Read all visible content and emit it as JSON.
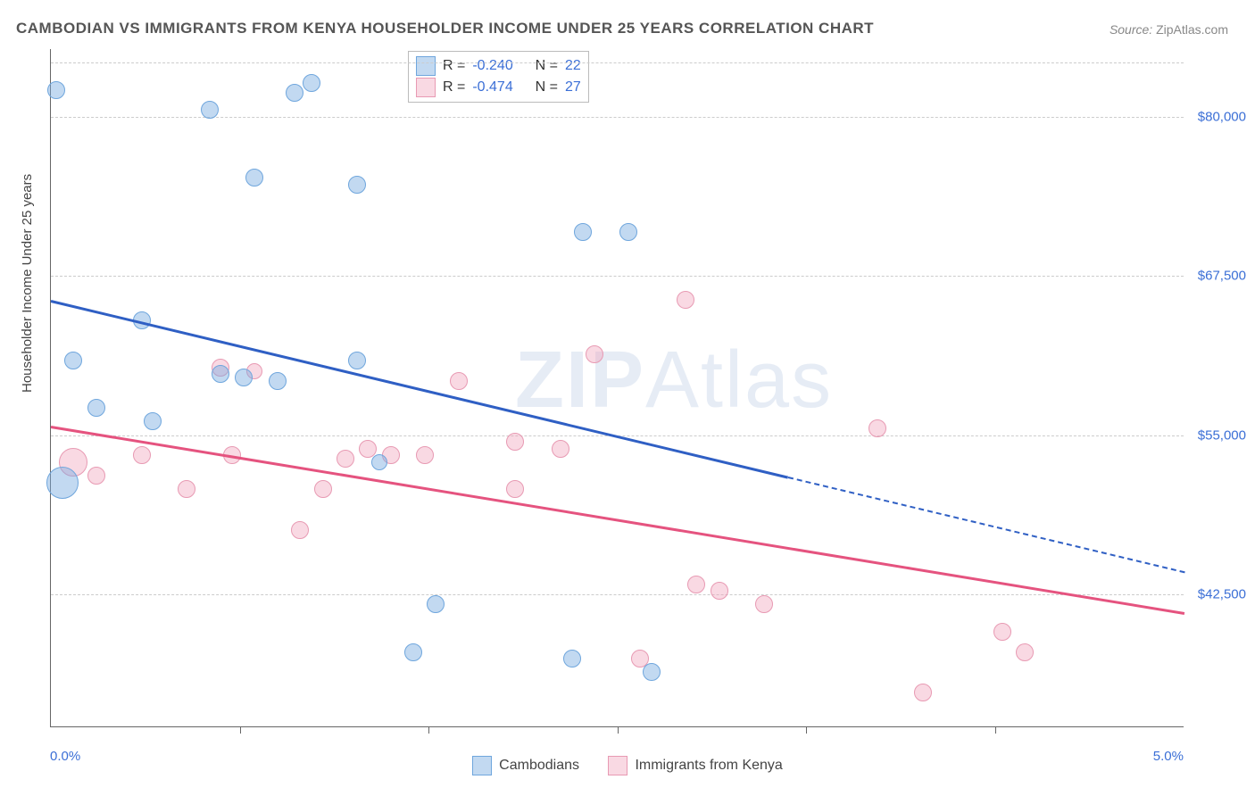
{
  "title": "CAMBODIAN VS IMMIGRANTS FROM KENYA HOUSEHOLDER INCOME UNDER 25 YEARS CORRELATION CHART",
  "source": {
    "label": "Source:",
    "text": "ZipAtlas.com"
  },
  "watermark": {
    "bold": "ZIP",
    "rest": "Atlas"
  },
  "yaxis_title": "Householder Income Under 25 years",
  "xaxis": {
    "min": 0.0,
    "max": 5.0,
    "left_label": "0.0%",
    "right_label": "5.0%",
    "tick_step_pct": 16.67
  },
  "yaxis": {
    "ticks": [
      {
        "value": 42500,
        "label": "$42,500",
        "pos_pct": 80.5
      },
      {
        "value": 55000,
        "label": "$55,000",
        "pos_pct": 57.0
      },
      {
        "value": 67500,
        "label": "$67,500",
        "pos_pct": 33.5
      },
      {
        "value": 80000,
        "label": "$80,000",
        "pos_pct": 10.0
      }
    ],
    "extra_gridline_pct": 2.0
  },
  "series": {
    "blue": {
      "label": "Cambodians",
      "fill": "rgba(120,170,225,0.45)",
      "stroke": "#6fa6dd",
      "r_value": "-0.240",
      "n_value": "22",
      "trend": {
        "x1_pct": 0,
        "y1_pct": 37,
        "x2_pct": 65,
        "y2_pct": 63,
        "color": "#2f5fc4"
      },
      "trend_ext": {
        "x1_pct": 65,
        "y1_pct": 63,
        "x2_pct": 100,
        "y2_pct": 77
      },
      "points": [
        {
          "x": 0.5,
          "y": 6,
          "r": 10
        },
        {
          "x": 14,
          "y": 9,
          "r": 10
        },
        {
          "x": 21.5,
          "y": 6.5,
          "r": 10
        },
        {
          "x": 23,
          "y": 5,
          "r": 10
        },
        {
          "x": 18,
          "y": 19,
          "r": 10
        },
        {
          "x": 27,
          "y": 20,
          "r": 10
        },
        {
          "x": 47,
          "y": 27,
          "r": 10
        },
        {
          "x": 51,
          "y": 27,
          "r": 10
        },
        {
          "x": 8,
          "y": 40,
          "r": 10
        },
        {
          "x": 2,
          "y": 46,
          "r": 10
        },
        {
          "x": 15,
          "y": 48,
          "r": 10
        },
        {
          "x": 17,
          "y": 48.5,
          "r": 10
        },
        {
          "x": 20,
          "y": 49,
          "r": 10
        },
        {
          "x": 27,
          "y": 46,
          "r": 10
        },
        {
          "x": 29,
          "y": 61,
          "r": 9
        },
        {
          "x": 9,
          "y": 55,
          "r": 10
        },
        {
          "x": 4,
          "y": 53,
          "r": 10
        },
        {
          "x": 1,
          "y": 64,
          "r": 18
        },
        {
          "x": 34,
          "y": 82,
          "r": 10
        },
        {
          "x": 32,
          "y": 89,
          "r": 10
        },
        {
          "x": 46,
          "y": 90,
          "r": 10
        },
        {
          "x": 53,
          "y": 92,
          "r": 10
        }
      ]
    },
    "pink": {
      "label": "Immigrants from Kenya",
      "fill": "rgba(240,160,185,0.40)",
      "stroke": "#e89ab3",
      "r_value": "-0.474",
      "n_value": "27",
      "trend": {
        "x1_pct": 0,
        "y1_pct": 55.5,
        "x2_pct": 100,
        "y2_pct": 83,
        "color": "#e5537f"
      },
      "points": [
        {
          "x": 15,
          "y": 47,
          "r": 10
        },
        {
          "x": 18,
          "y": 47.5,
          "r": 9
        },
        {
          "x": 8,
          "y": 60,
          "r": 10
        },
        {
          "x": 12,
          "y": 65,
          "r": 10
        },
        {
          "x": 16,
          "y": 60,
          "r": 10
        },
        {
          "x": 2,
          "y": 61,
          "r": 16
        },
        {
          "x": 4,
          "y": 63,
          "r": 10
        },
        {
          "x": 22,
          "y": 71,
          "r": 10
        },
        {
          "x": 24,
          "y": 65,
          "r": 10
        },
        {
          "x": 26,
          "y": 60.5,
          "r": 10
        },
        {
          "x": 28,
          "y": 59,
          "r": 10
        },
        {
          "x": 30,
          "y": 60,
          "r": 10
        },
        {
          "x": 33,
          "y": 60,
          "r": 10
        },
        {
          "x": 36,
          "y": 49,
          "r": 10
        },
        {
          "x": 41,
          "y": 58,
          "r": 10
        },
        {
          "x": 41,
          "y": 65,
          "r": 10
        },
        {
          "x": 45,
          "y": 59,
          "r": 10
        },
        {
          "x": 48,
          "y": 45,
          "r": 10
        },
        {
          "x": 56,
          "y": 37,
          "r": 10
        },
        {
          "x": 59,
          "y": 80,
          "r": 10
        },
        {
          "x": 57,
          "y": 79,
          "r": 10
        },
        {
          "x": 63,
          "y": 82,
          "r": 10
        },
        {
          "x": 52,
          "y": 90,
          "r": 10
        },
        {
          "x": 73,
          "y": 56,
          "r": 10
        },
        {
          "x": 77,
          "y": 95,
          "r": 10
        },
        {
          "x": 84,
          "y": 86,
          "r": 10
        },
        {
          "x": 86,
          "y": 89,
          "r": 10
        }
      ]
    }
  },
  "legend_text": {
    "R": "R =",
    "N": "N ="
  }
}
